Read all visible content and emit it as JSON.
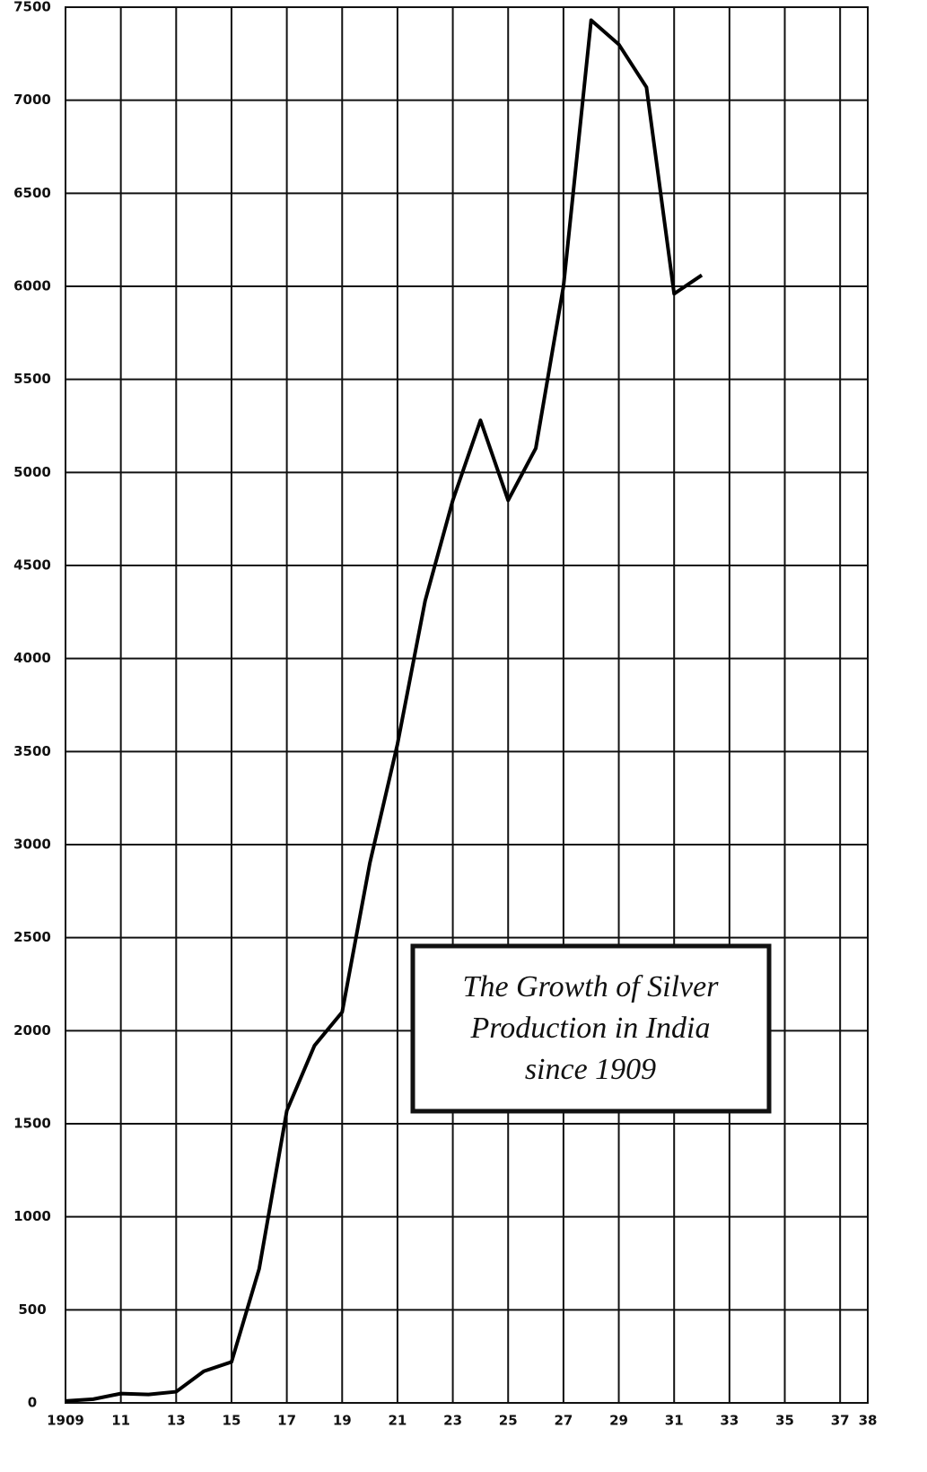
{
  "chart_data": {
    "type": "line",
    "annotations": [
      "The Growth of Silver",
      "Production in India",
      "since 1909"
    ],
    "x": [
      1909,
      1910,
      1911,
      1912,
      1913,
      1914,
      1915,
      1916,
      1917,
      1918,
      1919,
      1920,
      1921,
      1922,
      1923,
      1924,
      1925,
      1926,
      1927,
      1928,
      1929,
      1930,
      1931,
      1932
    ],
    "series": [
      {
        "color": "#000000",
        "values": [
          10,
          20,
          50,
          45,
          60,
          170,
          220,
          720,
          1570,
          1920,
          2100,
          2900,
          3540,
          4310,
          4850,
          5280,
          4850,
          5130,
          6000,
          7430,
          7300,
          7070,
          5960,
          6060
        ]
      }
    ],
    "xlim": [
      1909,
      1938
    ],
    "xticks": [
      {
        "value": 1909,
        "label": "1909"
      },
      {
        "value": 1911,
        "label": "11"
      },
      {
        "value": 1913,
        "label": "13"
      },
      {
        "value": 1915,
        "label": "15"
      },
      {
        "value": 1917,
        "label": "17"
      },
      {
        "value": 1919,
        "label": "19"
      },
      {
        "value": 1921,
        "label": "21"
      },
      {
        "value": 1923,
        "label": "23"
      },
      {
        "value": 1925,
        "label": "25"
      },
      {
        "value": 1927,
        "label": "27"
      },
      {
        "value": 1929,
        "label": "29"
      },
      {
        "value": 1931,
        "label": "31"
      },
      {
        "value": 1933,
        "label": "33"
      },
      {
        "value": 1935,
        "label": "35"
      },
      {
        "value": 1937,
        "label": "37"
      },
      {
        "value": 1938,
        "label": "38"
      }
    ],
    "ylim": [
      0,
      7500
    ],
    "yticks": [
      0,
      500,
      1000,
      1500,
      2000,
      2500,
      3000,
      3500,
      4000,
      4500,
      5000,
      5500,
      6000,
      6500,
      7000,
      7500
    ],
    "grid": true
  }
}
